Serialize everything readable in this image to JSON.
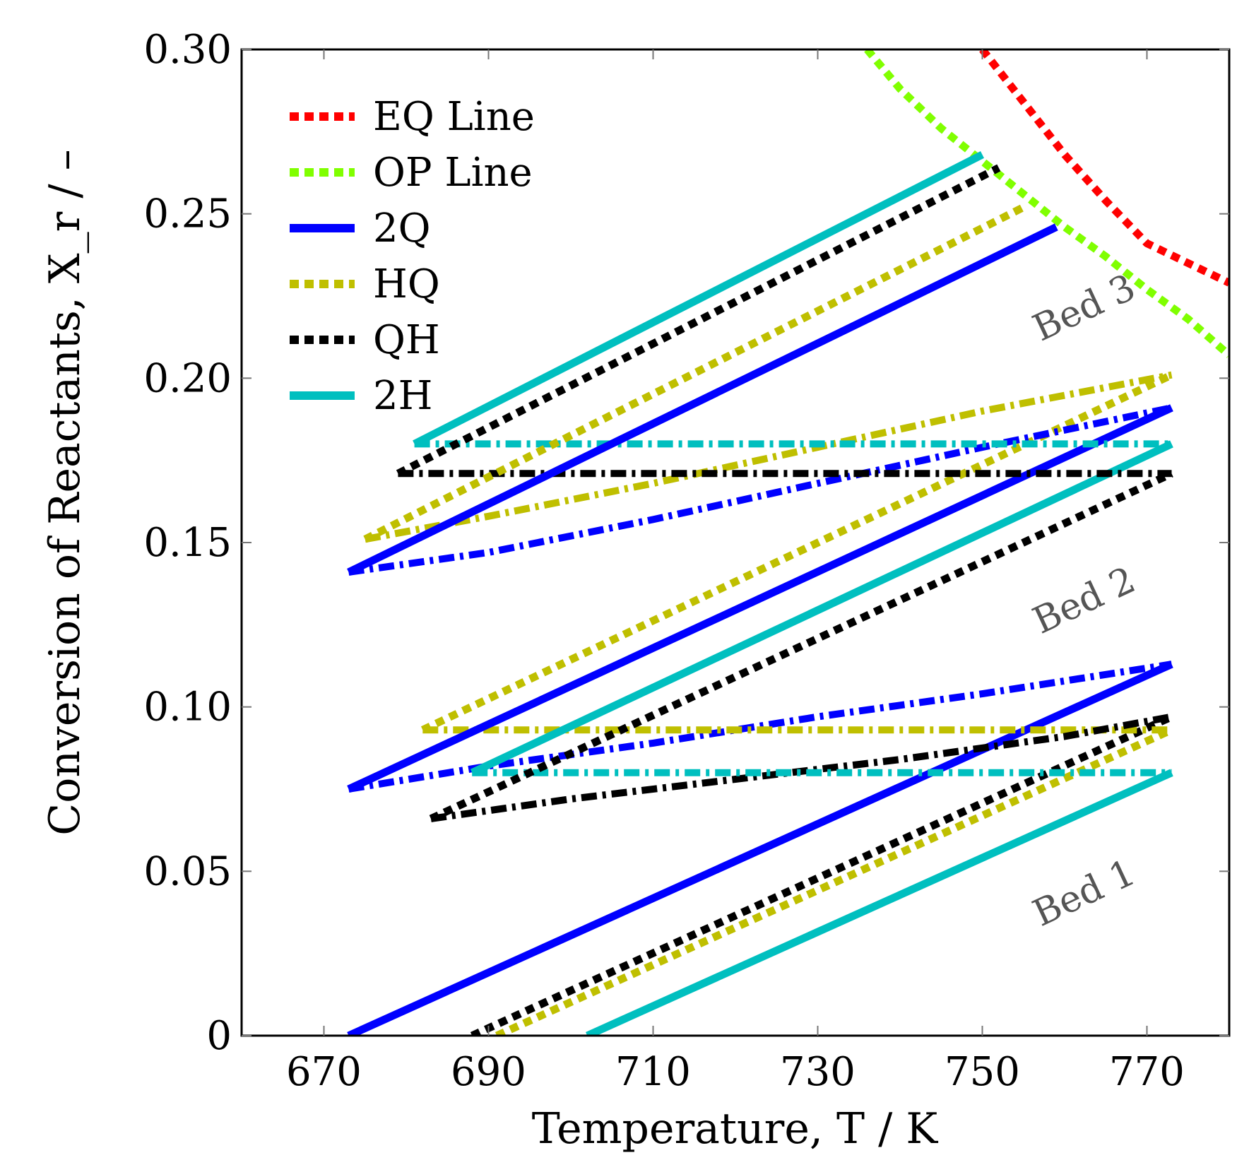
{
  "chart_data": {
    "type": "line",
    "xlabel": "Temperature, T / K",
    "ylabel": "Conversion of Reactants, X_r / –",
    "xlim": [
      660,
      780
    ],
    "ylim": [
      0,
      0.3
    ],
    "xticks": [
      "670",
      "690",
      "710",
      "730",
      "750",
      "770"
    ],
    "xtick_values": [
      670,
      690,
      710,
      730,
      750,
      770
    ],
    "yticks": [
      "0",
      "0.05",
      "0.10",
      "0.15",
      "0.20",
      "0.25",
      "0.30"
    ],
    "ytick_values": [
      0,
      0.05,
      0.1,
      0.15,
      0.2,
      0.25,
      0.3
    ],
    "legend": [
      {
        "label": "EQ Line",
        "color": "#ff0000",
        "style": "dotted"
      },
      {
        "label": "OP Line",
        "color": "#80ff00",
        "style": "dotted"
      },
      {
        "label": "2Q",
        "color": "#0000ff",
        "style": "solid"
      },
      {
        "label": "HQ",
        "color": "#bfbf00",
        "style": "dotted"
      },
      {
        "label": "QH",
        "color": "#000000",
        "style": "dotted"
      },
      {
        "label": "2H",
        "color": "#00bfbf",
        "style": "solid"
      }
    ],
    "annotations": [
      {
        "text": "Bed 1",
        "x": 763,
        "y": 0.04
      },
      {
        "text": "Bed 2",
        "x": 763,
        "y": 0.129
      },
      {
        "text": "Bed 3",
        "x": 763,
        "y": 0.218
      }
    ],
    "series": [
      {
        "name": "EQ Line",
        "color": "#ff0000",
        "style": "dotted",
        "points": [
          [
            750,
            0.3
          ],
          [
            755,
            0.284
          ],
          [
            760,
            0.268
          ],
          [
            765,
            0.254
          ],
          [
            770,
            0.241
          ],
          [
            780,
            0.229
          ]
        ]
      },
      {
        "name": "OP Line",
        "color": "#80ff00",
        "style": "dotted",
        "points": [
          [
            736,
            0.3
          ],
          [
            740,
            0.288
          ],
          [
            745,
            0.276
          ],
          [
            750,
            0.266
          ],
          [
            755,
            0.256
          ],
          [
            760,
            0.246
          ],
          [
            765,
            0.237
          ],
          [
            770,
            0.227
          ],
          [
            775,
            0.218
          ],
          [
            780,
            0.207
          ]
        ]
      },
      {
        "name": "2Q bed 1",
        "color": "#0000ff",
        "style": "solid",
        "points": [
          [
            673,
            0.0
          ],
          [
            773,
            0.113
          ]
        ]
      },
      {
        "name": "HQ bed 1",
        "color": "#bfbf00",
        "style": "dotted",
        "points": [
          [
            691,
            0.0
          ],
          [
            773,
            0.093
          ]
        ]
      },
      {
        "name": "QH bed 1",
        "color": "#000000",
        "style": "dotted",
        "points": [
          [
            688,
            0.0
          ],
          [
            773,
            0.097
          ]
        ]
      },
      {
        "name": "2H bed 1",
        "color": "#00bfbf",
        "style": "solid",
        "points": [
          [
            702,
            0.0
          ],
          [
            773,
            0.08
          ]
        ]
      },
      {
        "name": "2Q cooling 1",
        "color": "#0000ff",
        "style": "dashdot",
        "points": [
          [
            673,
            0.075
          ],
          [
            690,
            0.082
          ],
          [
            710,
            0.089
          ],
          [
            730,
            0.097
          ],
          [
            750,
            0.104
          ],
          [
            773,
            0.113
          ]
        ]
      },
      {
        "name": "HQ cooling 1",
        "color": "#bfbf00",
        "style": "dashdot",
        "points": [
          [
            682,
            0.093
          ],
          [
            773,
            0.093
          ]
        ]
      },
      {
        "name": "QH cooling 1",
        "color": "#000000",
        "style": "dashdot",
        "points": [
          [
            683,
            0.066
          ],
          [
            700,
            0.072
          ],
          [
            720,
            0.078
          ],
          [
            740,
            0.084
          ],
          [
            760,
            0.091
          ],
          [
            773,
            0.097
          ]
        ]
      },
      {
        "name": "2H cooling 1",
        "color": "#00bfbf",
        "style": "dashdot",
        "points": [
          [
            688,
            0.08
          ],
          [
            773,
            0.08
          ]
        ]
      },
      {
        "name": "2Q bed 2",
        "color": "#0000ff",
        "style": "solid",
        "points": [
          [
            673,
            0.075
          ],
          [
            773,
            0.191
          ]
        ]
      },
      {
        "name": "HQ bed 2",
        "color": "#bfbf00",
        "style": "dotted",
        "points": [
          [
            682,
            0.093
          ],
          [
            773,
            0.201
          ]
        ]
      },
      {
        "name": "QH bed 2",
        "color": "#000000",
        "style": "dotted",
        "points": [
          [
            683,
            0.066
          ],
          [
            773,
            0.171
          ]
        ]
      },
      {
        "name": "2H bed 2",
        "color": "#00bfbf",
        "style": "solid",
        "points": [
          [
            688,
            0.08
          ],
          [
            773,
            0.18
          ]
        ]
      },
      {
        "name": "2Q cooling 2",
        "color": "#0000ff",
        "style": "dashdot",
        "points": [
          [
            673,
            0.141
          ],
          [
            690,
            0.147
          ],
          [
            710,
            0.157
          ],
          [
            730,
            0.168
          ],
          [
            750,
            0.179
          ],
          [
            773,
            0.191
          ]
        ]
      },
      {
        "name": "HQ cooling 2",
        "color": "#bfbf00",
        "style": "dashdot",
        "points": [
          [
            675,
            0.151
          ],
          [
            690,
            0.158
          ],
          [
            710,
            0.168
          ],
          [
            730,
            0.179
          ],
          [
            750,
            0.19
          ],
          [
            773,
            0.201
          ]
        ]
      },
      {
        "name": "QH cooling 2",
        "color": "#000000",
        "style": "dashdot",
        "points": [
          [
            679,
            0.171
          ],
          [
            773,
            0.171
          ]
        ]
      },
      {
        "name": "2H cooling 2",
        "color": "#00bfbf",
        "style": "dashdot",
        "points": [
          [
            681,
            0.18
          ],
          [
            773,
            0.18
          ]
        ]
      },
      {
        "name": "2Q bed 3",
        "color": "#0000ff",
        "style": "solid",
        "points": [
          [
            673,
            0.141
          ],
          [
            759,
            0.246
          ]
        ]
      },
      {
        "name": "HQ bed 3",
        "color": "#bfbf00",
        "style": "dotted",
        "points": [
          [
            675,
            0.151
          ],
          [
            755,
            0.252
          ]
        ]
      },
      {
        "name": "QH bed 3",
        "color": "#000000",
        "style": "dotted",
        "points": [
          [
            679,
            0.171
          ],
          [
            752,
            0.264
          ]
        ]
      },
      {
        "name": "2H bed 3",
        "color": "#00bfbf",
        "style": "solid",
        "points": [
          [
            681,
            0.18
          ],
          [
            750,
            0.268
          ]
        ]
      }
    ]
  }
}
